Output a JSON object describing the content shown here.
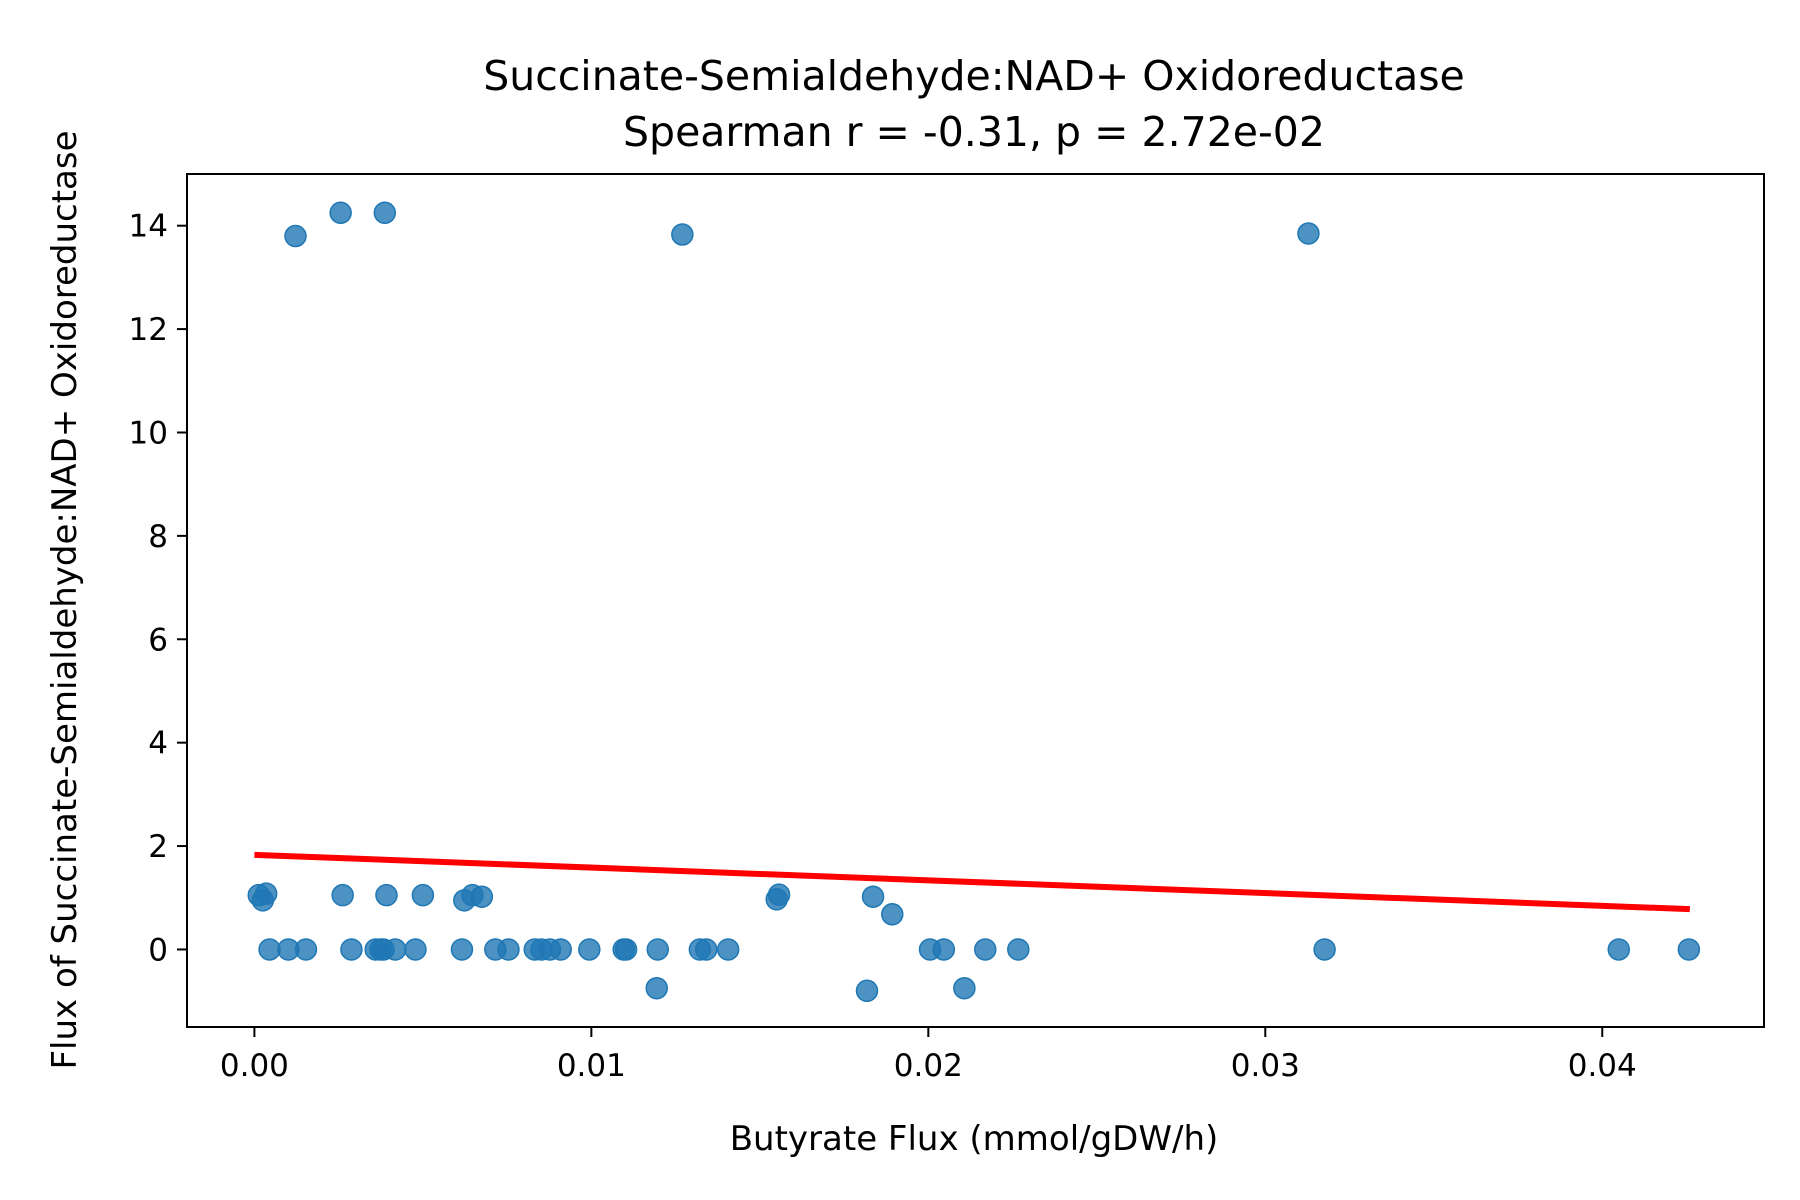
{
  "chart_data": {
    "type": "scatter",
    "title": "Succinate-Semialdehyde:NAD+ Oxidoreductase",
    "subtitle": "Spearman r = -0.31, p = 2.72e-02",
    "xlabel": "Butyrate Flux (mmol/gDW/h)",
    "ylabel": "Flux of Succinate-Semialdehyde:NAD+ Oxidoreductase",
    "xlim": [
      -0.002,
      0.0448
    ],
    "ylim": [
      -1.5,
      15.0
    ],
    "xticks": [
      0.0,
      0.01,
      0.02,
      0.03,
      0.04
    ],
    "xtick_labels": [
      "0.00",
      "0.01",
      "0.02",
      "0.03",
      "0.04"
    ],
    "yticks": [
      0,
      2,
      4,
      6,
      8,
      10,
      12,
      14
    ],
    "ytick_labels": [
      "0",
      "2",
      "4",
      "6",
      "8",
      "10",
      "12",
      "14"
    ],
    "grid": false,
    "colors": {
      "points": "#1f77b4",
      "fit_line": "#ff0000"
    },
    "points": [
      {
        "x": 0.00013,
        "y": 1.05
      },
      {
        "x": 0.00025,
        "y": 0.95
      },
      {
        "x": 0.00035,
        "y": 1.08
      },
      {
        "x": 0.00045,
        "y": 0.0
      },
      {
        "x": 0.00101,
        "y": 0.0
      },
      {
        "x": 0.00153,
        "y": 0.0
      },
      {
        "x": 0.00122,
        "y": 13.8
      },
      {
        "x": 0.00256,
        "y": 14.25
      },
      {
        "x": 0.00387,
        "y": 14.25
      },
      {
        "x": 0.0127,
        "y": 13.83
      },
      {
        "x": 0.03128,
        "y": 13.85
      },
      {
        "x": 0.00262,
        "y": 1.05
      },
      {
        "x": 0.00288,
        "y": 0.0
      },
      {
        "x": 0.0036,
        "y": 0.0
      },
      {
        "x": 0.00374,
        "y": 0.0
      },
      {
        "x": 0.00383,
        "y": 0.0
      },
      {
        "x": 0.00392,
        "y": 1.05
      },
      {
        "x": 0.00418,
        "y": 0.0
      },
      {
        "x": 0.00478,
        "y": 0.0
      },
      {
        "x": 0.005,
        "y": 1.05
      },
      {
        "x": 0.00616,
        "y": 0.0
      },
      {
        "x": 0.00623,
        "y": 0.95
      },
      {
        "x": 0.00647,
        "y": 1.05
      },
      {
        "x": 0.00675,
        "y": 1.02
      },
      {
        "x": 0.00715,
        "y": 0.0
      },
      {
        "x": 0.00754,
        "y": 0.0
      },
      {
        "x": 0.00832,
        "y": 0.0
      },
      {
        "x": 0.00852,
        "y": 0.0
      },
      {
        "x": 0.00877,
        "y": 0.0
      },
      {
        "x": 0.00909,
        "y": 0.0
      },
      {
        "x": 0.00994,
        "y": 0.0
      },
      {
        "x": 0.01096,
        "y": 0.0
      },
      {
        "x": 0.01103,
        "y": 0.0
      },
      {
        "x": 0.01197,
        "y": 0.0
      },
      {
        "x": 0.01194,
        "y": -0.75
      },
      {
        "x": 0.01322,
        "y": 0.0
      },
      {
        "x": 0.01341,
        "y": 0.0
      },
      {
        "x": 0.01406,
        "y": 0.0
      },
      {
        "x": 0.0155,
        "y": 0.97
      },
      {
        "x": 0.01557,
        "y": 1.06
      },
      {
        "x": 0.01818,
        "y": -0.8
      },
      {
        "x": 0.01836,
        "y": 1.02
      },
      {
        "x": 0.01893,
        "y": 0.68
      },
      {
        "x": 0.02005,
        "y": 0.0
      },
      {
        "x": 0.02046,
        "y": 0.0
      },
      {
        "x": 0.02107,
        "y": -0.75
      },
      {
        "x": 0.02169,
        "y": 0.0
      },
      {
        "x": 0.02267,
        "y": 0.0
      },
      {
        "x": 0.03176,
        "y": 0.0
      },
      {
        "x": 0.04049,
        "y": 0.0
      },
      {
        "x": 0.04257,
        "y": 0.0
      }
    ],
    "fit_line": {
      "x": [
        0.0,
        0.0426
      ],
      "y": [
        1.83,
        0.78
      ]
    }
  }
}
